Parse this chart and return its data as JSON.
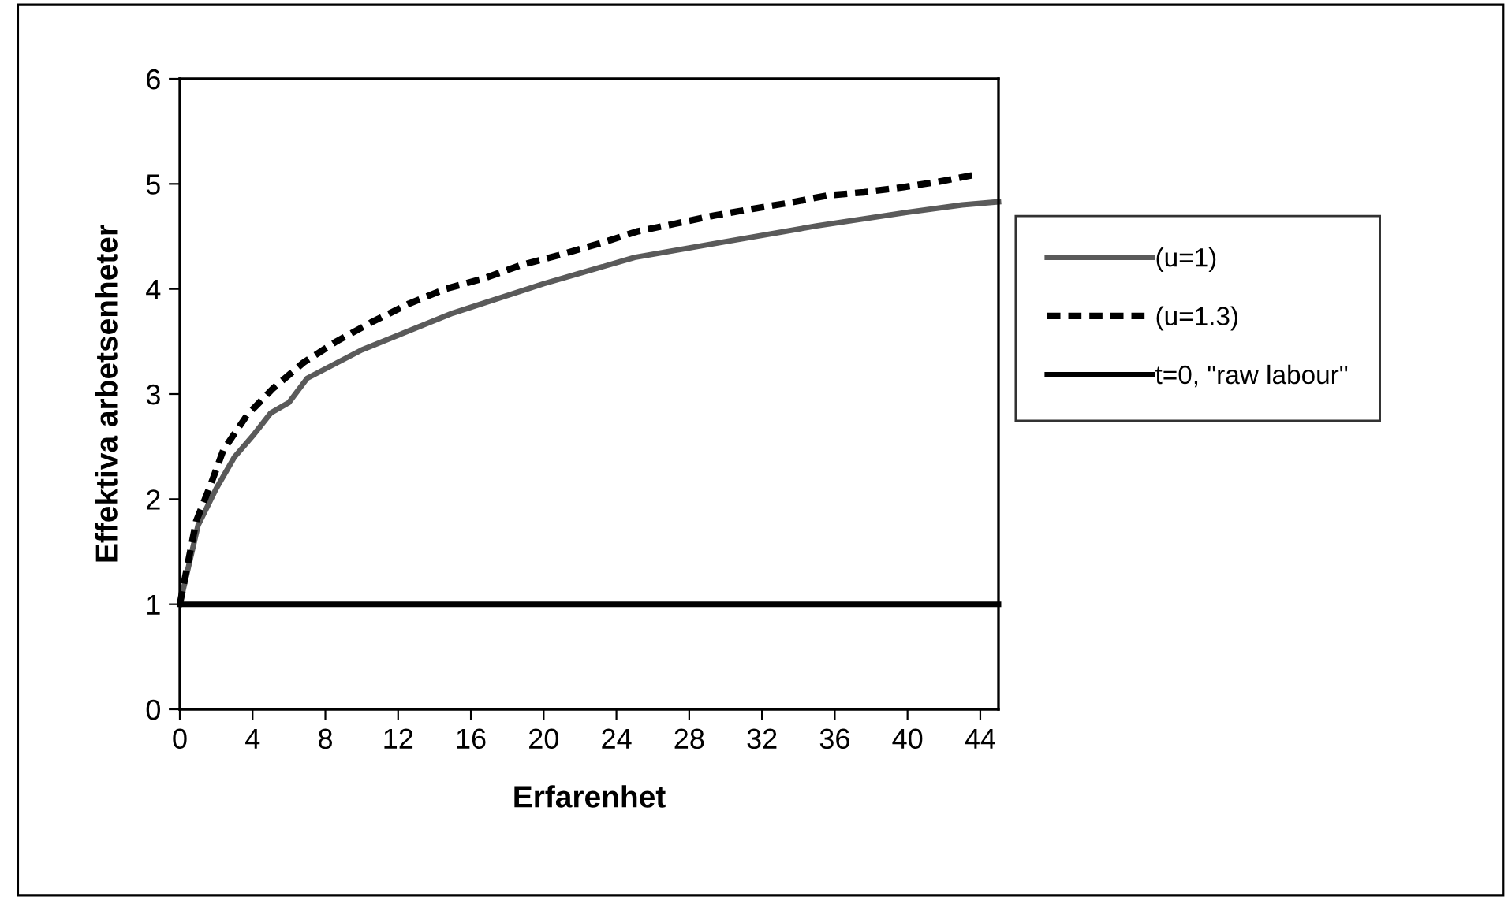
{
  "chart_data": {
    "type": "line",
    "xlabel": "Erfarenhet",
    "ylabel": "Effektiva arbetsenheter",
    "xlim": [
      0,
      45
    ],
    "xticks": [
      0,
      4,
      8,
      12,
      16,
      20,
      24,
      28,
      32,
      36,
      40,
      44
    ],
    "ylim": [
      0,
      6
    ],
    "yticks": [
      0,
      1,
      2,
      3,
      4,
      5,
      6
    ],
    "grid": false,
    "legend": "right",
    "marker": "none",
    "series": [
      {
        "name": "(u=1)",
        "color": "#5a5a5a",
        "line_style": "solid",
        "x": [
          0,
          1,
          2,
          3,
          4,
          5,
          6,
          7,
          10,
          15,
          20,
          22,
          25,
          30,
          35,
          40,
          43,
          45
        ],
        "values": [
          1,
          1.75,
          2.1,
          2.4,
          2.6,
          2.82,
          2.92,
          3.15,
          3.42,
          3.77,
          4.05,
          4.15,
          4.3,
          4.45,
          4.6,
          4.73,
          4.8,
          4.83
        ]
      },
      {
        "name": "(u=1.3)",
        "color": "#000000",
        "line_style": "dashed",
        "x": [
          0,
          0.9,
          1.7,
          2.4,
          3.7,
          5.1,
          6.8,
          8.6,
          10.5,
          12.6,
          14.6,
          16.7,
          18.8,
          20.8,
          23.2,
          25.2,
          27.2,
          29.4,
          31.4,
          33.5,
          35.6,
          37.6,
          39.8,
          41.7,
          43.8
        ],
        "values": [
          1,
          1.79,
          2.14,
          2.47,
          2.8,
          3.05,
          3.3,
          3.5,
          3.68,
          3.86,
          4.0,
          4.1,
          4.23,
          4.32,
          4.44,
          4.55,
          4.62,
          4.7,
          4.76,
          4.82,
          4.89,
          4.92,
          4.97,
          5.02,
          5.09
        ]
      },
      {
        "name": "t=0, \"raw labour\"",
        "color": "#000000",
        "line_style": "solid",
        "x": [
          0,
          45
        ],
        "values": [
          1,
          1
        ]
      }
    ]
  }
}
